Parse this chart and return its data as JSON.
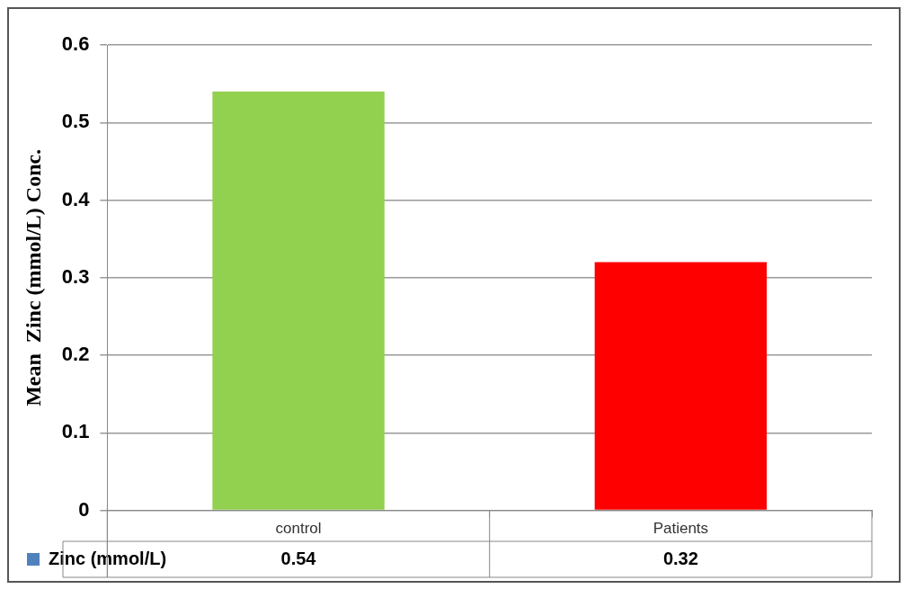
{
  "chart_data": {
    "type": "bar",
    "ylabel": "Mean  Zinc (mmol/L) Conc.",
    "categories": [
      "control",
      "Patients"
    ],
    "series": [
      {
        "name": "Zinc (mmol/L)",
        "color": "#4f81bd",
        "colors": [
          "#92d050",
          "#ff0000"
        ],
        "values": [
          0.54,
          0.32
        ]
      }
    ],
    "ylim": [
      0,
      0.6
    ],
    "yticks": [
      0,
      0.1,
      0.2,
      0.3,
      0.4,
      0.5,
      0.6
    ],
    "grid": "y",
    "data_labels": true,
    "legend": "bottom"
  }
}
